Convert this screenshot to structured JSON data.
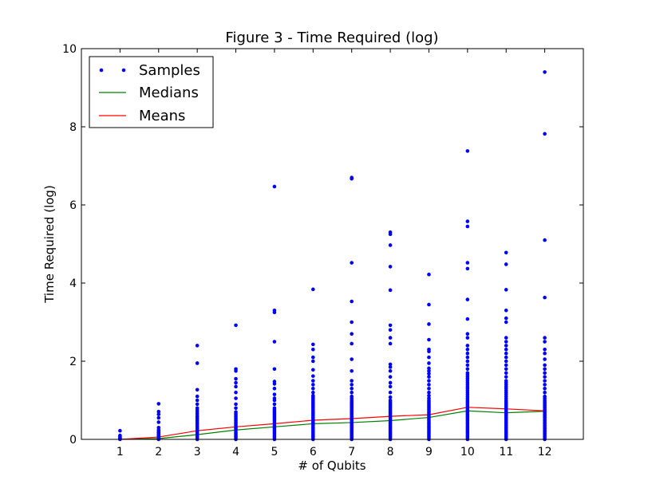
{
  "chart_data": {
    "type": "scatter",
    "title": "Figure 3 - Time Required (log)",
    "xlabel": "# of Qubits",
    "ylabel": "Time Required (log)",
    "xlim": [
      0,
      13
    ],
    "ylim": [
      0,
      10
    ],
    "xticks": [
      1,
      2,
      3,
      4,
      5,
      6,
      7,
      8,
      9,
      10,
      11,
      12
    ],
    "yticks": [
      0,
      2,
      4,
      6,
      8,
      10
    ],
    "grid": false,
    "legend_position": "top-left",
    "legend": [
      "Samples",
      "Medians",
      "Means"
    ],
    "series": [
      {
        "name": "Samples",
        "kind": "points",
        "color": "#0000ff",
        "groups": [
          {
            "x": 1,
            "y": [
              0,
              0.02,
              0.03,
              0.05,
              0.07,
              0.1,
              0.22
            ]
          },
          {
            "x": 2,
            "y": [
              0,
              0.02,
              0.04,
              0.06,
              0.08,
              0.1,
              0.12,
              0.14,
              0.17,
              0.2,
              0.24,
              0.3,
              0.44,
              0.55,
              0.64,
              0.71,
              0.91
            ]
          },
          {
            "x": 3,
            "y": [
              0,
              0.04,
              0.08,
              0.12,
              0.16,
              0.2,
              0.24,
              0.28,
              0.32,
              0.36,
              0.4,
              0.44,
              0.48,
              0.52,
              0.56,
              0.6,
              0.65,
              0.7,
              0.75,
              0.8,
              0.9,
              1.0,
              1.1,
              1.27,
              1.95,
              2.4
            ]
          },
          {
            "x": 4,
            "y": [
              0,
              0.04,
              0.08,
              0.12,
              0.16,
              0.2,
              0.24,
              0.28,
              0.32,
              0.36,
              0.4,
              0.44,
              0.48,
              0.52,
              0.56,
              0.6,
              0.65,
              0.7,
              0.8,
              0.9,
              1.05,
              1.2,
              1.35,
              1.45,
              1.55,
              1.75,
              1.8,
              2.92
            ]
          },
          {
            "x": 5,
            "y": [
              0,
              0.04,
              0.08,
              0.12,
              0.16,
              0.2,
              0.24,
              0.28,
              0.32,
              0.36,
              0.4,
              0.44,
              0.48,
              0.52,
              0.56,
              0.6,
              0.64,
              0.68,
              0.72,
              0.76,
              0.8,
              0.9,
              1.0,
              1.05,
              1.15,
              1.3,
              1.42,
              1.48,
              1.8,
              2.5,
              3.25,
              3.3,
              6.47
            ]
          },
          {
            "x": 6,
            "y": [
              0,
              0.04,
              0.08,
              0.12,
              0.16,
              0.2,
              0.24,
              0.28,
              0.32,
              0.36,
              0.4,
              0.44,
              0.48,
              0.52,
              0.56,
              0.6,
              0.64,
              0.68,
              0.72,
              0.76,
              0.8,
              0.84,
              0.88,
              0.92,
              0.96,
              1.0,
              1.04,
              1.08,
              1.12,
              1.2,
              1.3,
              1.4,
              1.5,
              1.62,
              1.78,
              2.0,
              2.1,
              2.3,
              2.43,
              3.84
            ]
          },
          {
            "x": 7,
            "y": [
              0,
              0.04,
              0.08,
              0.12,
              0.16,
              0.2,
              0.24,
              0.28,
              0.32,
              0.36,
              0.4,
              0.44,
              0.48,
              0.52,
              0.56,
              0.6,
              0.64,
              0.68,
              0.72,
              0.76,
              0.8,
              0.84,
              0.88,
              0.92,
              0.96,
              1.0,
              1.05,
              1.1,
              1.2,
              1.3,
              1.4,
              1.5,
              1.75,
              2.05,
              2.45,
              2.7,
              3.0,
              3.53,
              4.52,
              6.67,
              6.7
            ]
          },
          {
            "x": 8,
            "y": [
              0,
              0.04,
              0.08,
              0.12,
              0.16,
              0.2,
              0.24,
              0.28,
              0.32,
              0.36,
              0.4,
              0.44,
              0.48,
              0.52,
              0.56,
              0.6,
              0.64,
              0.68,
              0.72,
              0.76,
              0.8,
              0.84,
              0.88,
              0.92,
              0.96,
              1.0,
              1.08,
              1.2,
              1.35,
              1.45,
              1.6,
              1.75,
              1.85,
              1.92,
              2.45,
              2.6,
              2.8,
              2.92,
              3.82,
              4.42,
              4.97,
              5.25,
              5.3
            ]
          },
          {
            "x": 9,
            "y": [
              0,
              0.04,
              0.08,
              0.12,
              0.16,
              0.2,
              0.24,
              0.28,
              0.32,
              0.36,
              0.4,
              0.44,
              0.48,
              0.52,
              0.56,
              0.6,
              0.64,
              0.68,
              0.72,
              0.76,
              0.8,
              0.84,
              0.88,
              0.92,
              0.96,
              1.0,
              1.05,
              1.12,
              1.2,
              1.3,
              1.4,
              1.5,
              1.6,
              1.68,
              1.75,
              1.82,
              1.95,
              2.1,
              2.25,
              2.3,
              2.55,
              2.95,
              3.45,
              4.22
            ]
          },
          {
            "x": 10,
            "y": [
              0,
              0.04,
              0.08,
              0.12,
              0.16,
              0.2,
              0.24,
              0.28,
              0.32,
              0.36,
              0.4,
              0.44,
              0.48,
              0.52,
              0.56,
              0.6,
              0.64,
              0.68,
              0.72,
              0.76,
              0.8,
              0.84,
              0.88,
              0.92,
              0.96,
              1.0,
              1.05,
              1.1,
              1.15,
              1.2,
              1.25,
              1.3,
              1.35,
              1.4,
              1.45,
              1.5,
              1.55,
              1.6,
              1.65,
              1.7,
              1.8,
              1.9,
              2.0,
              2.1,
              2.2,
              2.3,
              2.4,
              2.6,
              2.7,
              3.08,
              3.58,
              4.37,
              4.52,
              5.45,
              5.58,
              7.38
            ]
          },
          {
            "x": 11,
            "y": [
              0,
              0.04,
              0.08,
              0.12,
              0.16,
              0.2,
              0.24,
              0.28,
              0.32,
              0.36,
              0.4,
              0.44,
              0.48,
              0.52,
              0.56,
              0.6,
              0.64,
              0.68,
              0.72,
              0.76,
              0.8,
              0.84,
              0.88,
              0.92,
              0.96,
              1.0,
              1.05,
              1.1,
              1.15,
              1.2,
              1.25,
              1.3,
              1.35,
              1.4,
              1.45,
              1.5,
              1.6,
              1.7,
              1.8,
              1.9,
              2.0,
              2.1,
              2.2,
              2.3,
              2.4,
              2.5,
              2.6,
              3.0,
              3.1,
              3.3,
              3.83,
              4.48,
              4.78
            ]
          },
          {
            "x": 12,
            "y": [
              0,
              0.04,
              0.08,
              0.12,
              0.16,
              0.2,
              0.24,
              0.28,
              0.32,
              0.36,
              0.4,
              0.44,
              0.48,
              0.52,
              0.56,
              0.6,
              0.64,
              0.68,
              0.72,
              0.76,
              0.8,
              0.84,
              0.88,
              0.92,
              0.96,
              1.0,
              1.05,
              1.1,
              1.2,
              1.3,
              1.4,
              1.5,
              1.6,
              1.7,
              1.8,
              1.9,
              2.05,
              2.2,
              2.3,
              2.5,
              2.6,
              3.63,
              5.1,
              7.82,
              9.4
            ]
          }
        ]
      },
      {
        "name": "Medians",
        "kind": "line",
        "color": "#008000",
        "x": [
          1,
          2,
          3,
          4,
          5,
          6,
          7,
          8,
          9,
          10,
          11,
          12
        ],
        "y": [
          0.0,
          0.02,
          0.12,
          0.24,
          0.32,
          0.4,
          0.43,
          0.48,
          0.56,
          0.73,
          0.68,
          0.72
        ]
      },
      {
        "name": "Means",
        "kind": "line",
        "color": "#ff0000",
        "x": [
          1,
          2,
          3,
          4,
          5,
          6,
          7,
          8,
          9,
          10,
          11,
          12
        ],
        "y": [
          0.0,
          0.06,
          0.22,
          0.32,
          0.4,
          0.49,
          0.53,
          0.59,
          0.63,
          0.82,
          0.78,
          0.73
        ]
      }
    ]
  }
}
